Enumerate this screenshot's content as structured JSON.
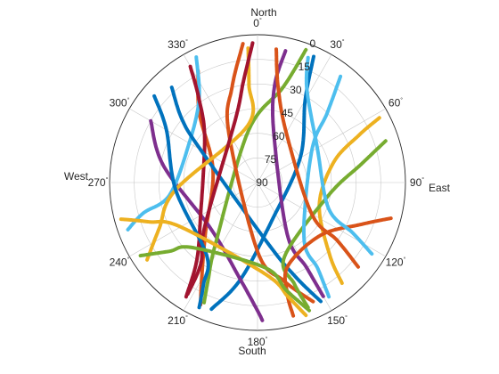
{
  "chart_data": {
    "type": "polar-skyplot",
    "direction_labels": {
      "north": "North",
      "south": "South",
      "east": "East",
      "west": "West"
    },
    "azimuth_ticks": [
      0,
      30,
      60,
      90,
      120,
      150,
      180,
      210,
      240,
      270,
      300,
      330
    ],
    "azimuth_tick_labels": [
      "0",
      "30",
      "60",
      "90",
      "120",
      "150",
      "180",
      "210",
      "240",
      "270",
      "300",
      "330"
    ],
    "elevation_ticks": [
      0,
      15,
      30,
      45,
      60,
      75,
      90
    ],
    "elevation_tick_labels": [
      "0",
      "15",
      "30",
      "45",
      "60",
      "75",
      "90"
    ],
    "elevation_label_azimuth": 20,
    "degree_symbol": "°",
    "grid": true,
    "series": [
      {
        "color": "#0072BD",
        "points": [
          [
            200,
            8
          ],
          [
            190,
            30
          ],
          [
            160,
            65
          ],
          [
            60,
            60
          ],
          [
            30,
            32
          ],
          [
            24,
            6
          ]
        ]
      },
      {
        "color": "#D95319",
        "points": [
          [
            332,
            13
          ],
          [
            320,
            35
          ],
          [
            285,
            62
          ],
          [
            225,
            45
          ],
          [
            210,
            22
          ],
          [
            205,
            8
          ]
        ]
      },
      {
        "color": "#EDB120",
        "points": [
          [
            140,
            10
          ],
          [
            135,
            28
          ],
          [
            110,
            50
          ],
          [
            75,
            42
          ],
          [
            65,
            22
          ],
          [
            62,
            6
          ]
        ]
      },
      {
        "color": "#7E2F8E",
        "points": [
          [
            300,
            15
          ],
          [
            280,
            32
          ],
          [
            225,
            50
          ],
          [
            190,
            30
          ],
          [
            180,
            12
          ],
          [
            178,
            6
          ]
        ]
      },
      {
        "color": "#77AC30",
        "points": [
          [
            20,
            4
          ],
          [
            15,
            30
          ],
          [
            350,
            58
          ],
          [
            215,
            46
          ],
          [
            207,
            24
          ],
          [
            204,
            10
          ]
        ]
      },
      {
        "color": "#4DBEEE",
        "points": [
          [
            334,
            5
          ],
          [
            325,
            28
          ],
          [
            300,
            42
          ],
          [
            262,
            36
          ],
          [
            255,
            18
          ],
          [
            250,
            6
          ]
        ]
      },
      {
        "color": "#A2142F",
        "points": [
          [
            212,
            8
          ],
          [
            218,
            30
          ],
          [
            240,
            50
          ],
          [
            310,
            48
          ],
          [
            325,
            28
          ],
          [
            330,
            8
          ]
        ]
      },
      {
        "color": "#0072BD",
        "points": [
          [
            152,
            8
          ],
          [
            158,
            28
          ],
          [
            170,
            52
          ],
          [
            300,
            50
          ],
          [
            310,
            30
          ],
          [
            318,
            12
          ]
        ]
      },
      {
        "color": "#D95319",
        "points": [
          [
            354,
            5
          ],
          [
            345,
            30
          ],
          [
            330,
            55
          ],
          [
            180,
            48
          ],
          [
            165,
            28
          ],
          [
            155,
            10
          ]
        ]
      },
      {
        "color": "#EDB120",
        "points": [
          [
            235,
            8
          ],
          [
            245,
            24
          ],
          [
            265,
            40
          ],
          [
            350,
            55
          ],
          [
            355,
            30
          ],
          [
            356,
            8
          ]
        ]
      },
      {
        "color": "#7E2F8E",
        "points": [
          [
            12,
            8
          ],
          [
            10,
            30
          ],
          [
            18,
            58
          ],
          [
            150,
            54
          ],
          [
            150,
            30
          ],
          [
            150,
            10
          ]
        ]
      },
      {
        "color": "#77AC30",
        "points": [
          [
            72,
            8
          ],
          [
            80,
            26
          ],
          [
            100,
            46
          ],
          [
            160,
            42
          ],
          [
            160,
            24
          ],
          [
            158,
            8
          ]
        ]
      },
      {
        "color": "#4DBEEE",
        "points": [
          [
            38,
            8
          ],
          [
            45,
            30
          ],
          [
            60,
            52
          ],
          [
            140,
            46
          ],
          [
            145,
            26
          ],
          [
            148,
            8
          ]
        ]
      },
      {
        "color": "#A2142F",
        "points": [
          [
            358,
            5
          ],
          [
            352,
            28
          ],
          [
            340,
            50
          ],
          [
            230,
            48
          ],
          [
            215,
            30
          ],
          [
            212,
            10
          ]
        ]
      },
      {
        "color": "#0072BD",
        "points": [
          [
            310,
            8
          ],
          [
            300,
            26
          ],
          [
            265,
            40
          ],
          [
            215,
            36
          ],
          [
            208,
            20
          ],
          [
            205,
            6
          ]
        ]
      },
      {
        "color": "#D95319",
        "points": [
          [
            105,
            6
          ],
          [
            112,
            22
          ],
          [
            130,
            40
          ],
          [
            160,
            36
          ],
          [
            165,
            20
          ],
          [
            165,
            6
          ]
        ]
      },
      {
        "color": "#EDB120",
        "points": [
          [
            255,
            4
          ],
          [
            250,
            20
          ],
          [
            240,
            36
          ],
          [
            175,
            34
          ],
          [
            165,
            18
          ],
          [
            160,
            4
          ]
        ]
      },
      {
        "color": "#77AC30",
        "points": [
          [
            238,
            6
          ],
          [
            232,
            22
          ],
          [
            225,
            34
          ],
          [
            175,
            38
          ],
          [
            165,
            22
          ],
          [
            158,
            6
          ]
        ]
      },
      {
        "color": "#4DBEEE",
        "points": [
          [
            22,
            8
          ],
          [
            28,
            26
          ],
          [
            60,
            48
          ],
          [
            110,
            44
          ],
          [
            118,
            24
          ],
          [
            122,
            8
          ]
        ]
      },
      {
        "color": "#D95319",
        "points": [
          [
            8,
            8
          ],
          [
            12,
            30
          ],
          [
            30,
            55
          ],
          [
            120,
            52
          ],
          [
            126,
            30
          ],
          [
            130,
            10
          ]
        ]
      }
    ]
  }
}
